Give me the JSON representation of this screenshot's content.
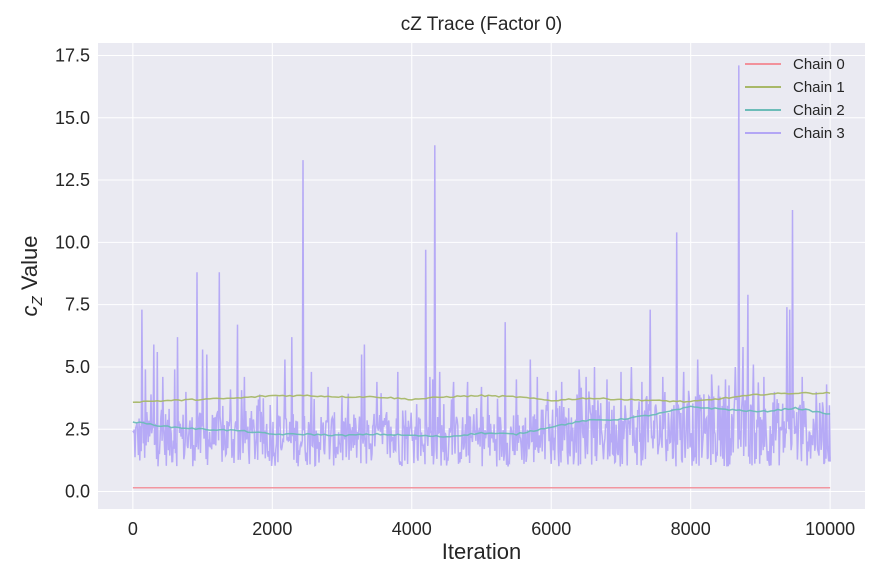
{
  "chart_data": {
    "type": "line",
    "title": "cZ Trace (Factor 0)",
    "xlabel": "Iteration",
    "ylabel_main": "c",
    "ylabel_sub": "Z",
    "ylabel_rest": " Value",
    "xlim": [
      -500,
      10500
    ],
    "ylim": [
      -0.7,
      18.0
    ],
    "xticks": [
      0,
      2000,
      4000,
      6000,
      8000,
      10000
    ],
    "xtick_labels": [
      "0",
      "2000",
      "4000",
      "6000",
      "8000",
      "10000"
    ],
    "yticks": [
      0.0,
      2.5,
      5.0,
      7.5,
      10.0,
      12.5,
      15.0,
      17.5
    ],
    "ytick_labels": [
      "0.0",
      "2.5",
      "5.0",
      "7.5",
      "10.0",
      "12.5",
      "15.0",
      "17.5"
    ],
    "grid": true,
    "legend_position": "top-right",
    "series": [
      {
        "name": "Chain 0",
        "color": "#f2919b",
        "x": [
          0,
          10000
        ],
        "y": [
          0.15,
          0.15
        ]
      },
      {
        "name": "Chain 1",
        "color": "#a8b868",
        "x": [
          0,
          500,
          1000,
          1500,
          2000,
          2500,
          3000,
          3500,
          4000,
          4500,
          5000,
          5500,
          6000,
          6500,
          7000,
          7500,
          8000,
          8500,
          9000,
          9500,
          10000
        ],
        "y": [
          3.6,
          3.65,
          3.7,
          3.75,
          3.85,
          3.85,
          3.8,
          3.8,
          3.7,
          3.8,
          3.85,
          3.8,
          3.65,
          3.75,
          3.7,
          3.65,
          3.6,
          3.75,
          3.9,
          3.95,
          3.95
        ]
      },
      {
        "name": "Chain 2",
        "color": "#6cbcb8",
        "x": [
          0,
          500,
          1000,
          1500,
          2000,
          2500,
          3000,
          3500,
          4000,
          4500,
          5000,
          5500,
          6000,
          6500,
          7000,
          7500,
          8000,
          8500,
          9000,
          9500,
          10000
        ],
        "y": [
          2.8,
          2.6,
          2.5,
          2.45,
          2.3,
          2.3,
          2.25,
          2.3,
          2.25,
          2.2,
          2.35,
          2.3,
          2.6,
          2.85,
          2.9,
          3.1,
          3.4,
          3.3,
          3.2,
          3.35,
          3.1
        ]
      },
      {
        "name": "Chain 3",
        "color": "#b3a6f5",
        "base_x": [
          0,
          500,
          1000,
          1500,
          2000,
          2500,
          3000,
          3500,
          4000,
          4500,
          5000,
          5500,
          6000,
          6500,
          7000,
          7500,
          8000,
          8500,
          9000,
          9500,
          10000
        ],
        "base_y": [
          2.2,
          2.3,
          2.2,
          2.3,
          2.2,
          2.2,
          2.2,
          2.2,
          2.2,
          2.1,
          2.2,
          2.2,
          2.4,
          2.5,
          2.6,
          2.6,
          2.7,
          2.7,
          2.6,
          2.6,
          2.4
        ],
        "range_low": 1.0,
        "spikes": [
          [
            130,
            7.3
          ],
          [
            180,
            4.9
          ],
          [
            260,
            3.9
          ],
          [
            300,
            5.9
          ],
          [
            350,
            5.6
          ],
          [
            430,
            4.6
          ],
          [
            600,
            4.9
          ],
          [
            640,
            6.2
          ],
          [
            760,
            4.0
          ],
          [
            920,
            8.8
          ],
          [
            1000,
            5.7
          ],
          [
            1060,
            5.5
          ],
          [
            1240,
            8.8
          ],
          [
            1400,
            4.1
          ],
          [
            1500,
            6.7
          ],
          [
            1600,
            4.6
          ],
          [
            1800,
            3.7
          ],
          [
            2180,
            5.3
          ],
          [
            2280,
            6.2
          ],
          [
            2440,
            13.3
          ],
          [
            2560,
            4.8
          ],
          [
            2800,
            4.2
          ],
          [
            3000,
            3.8
          ],
          [
            3280,
            5.5
          ],
          [
            3320,
            5.9
          ],
          [
            3500,
            4.4
          ],
          [
            3800,
            4.8
          ],
          [
            4200,
            9.7
          ],
          [
            4260,
            4.6
          ],
          [
            4300,
            4.5
          ],
          [
            4330,
            13.9
          ],
          [
            4400,
            4.8
          ],
          [
            4600,
            4.4
          ],
          [
            4800,
            4.4
          ],
          [
            5000,
            4.2
          ],
          [
            5340,
            6.8
          ],
          [
            5500,
            4.5
          ],
          [
            5700,
            5.3
          ],
          [
            5800,
            4.6
          ],
          [
            5950,
            4.0
          ],
          [
            6150,
            4.4
          ],
          [
            6400,
            4.9
          ],
          [
            6500,
            4.6
          ],
          [
            6620,
            5.0
          ],
          [
            6800,
            4.5
          ],
          [
            7000,
            4.8
          ],
          [
            7150,
            5.0
          ],
          [
            7300,
            4.4
          ],
          [
            7420,
            7.3
          ],
          [
            7600,
            4.6
          ],
          [
            7800,
            10.4
          ],
          [
            7900,
            4.8
          ],
          [
            8100,
            5.3
          ],
          [
            8300,
            4.7
          ],
          [
            8500,
            4.5
          ],
          [
            8640,
            5.0
          ],
          [
            8690,
            17.1
          ],
          [
            8750,
            5.8
          ],
          [
            8820,
            7.9
          ],
          [
            8900,
            5.1
          ],
          [
            9050,
            4.6
          ],
          [
            9200,
            4.0
          ],
          [
            9380,
            7.4
          ],
          [
            9420,
            7.3
          ],
          [
            9460,
            11.3
          ],
          [
            9600,
            4.6
          ],
          [
            9800,
            4.0
          ],
          [
            9950,
            4.3
          ]
        ]
      }
    ]
  }
}
